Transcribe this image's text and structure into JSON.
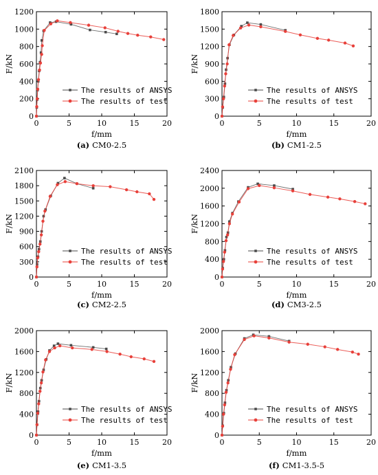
{
  "colors": {
    "ansys": "#4a4a4a",
    "test": "#e8403a",
    "axis": "#000000"
  },
  "legend": {
    "placement": "lower-right"
  },
  "chart_data": [
    {
      "type": "line",
      "tag": "(a)",
      "label": "CM0-2.5",
      "xlabel": "f/mm",
      "ylabel": "F/kN",
      "xlim": [
        0,
        20
      ],
      "ylim": [
        0,
        1200
      ],
      "xticks": [
        0,
        5,
        10,
        15,
        20
      ],
      "yticks": [
        0,
        200,
        400,
        600,
        800,
        1000,
        1200
      ],
      "series": [
        {
          "name": "The results of ANSYS",
          "marker": "square",
          "points": [
            [
              0,
              0
            ],
            [
              0.05,
              100
            ],
            [
              0.1,
              190
            ],
            [
              0.18,
              300
            ],
            [
              0.28,
              400
            ],
            [
              0.42,
              520
            ],
            [
              0.55,
              620
            ],
            [
              0.7,
              730
            ],
            [
              0.82,
              870
            ],
            [
              1.1,
              980
            ],
            [
              2.1,
              1075
            ],
            [
              3.0,
              1085
            ],
            [
              5.3,
              1055
            ],
            [
              8.2,
              990
            ],
            [
              10.6,
              965
            ],
            [
              12.3,
              945
            ]
          ]
        },
        {
          "name": "The results of test",
          "marker": "circle",
          "points": [
            [
              0,
              0
            ],
            [
              0.05,
              110
            ],
            [
              0.12,
              200
            ],
            [
              0.2,
              310
            ],
            [
              0.32,
              420
            ],
            [
              0.48,
              530
            ],
            [
              0.62,
              610
            ],
            [
              0.8,
              710
            ],
            [
              0.9,
              810
            ],
            [
              1.2,
              985
            ],
            [
              2.2,
              1060
            ],
            [
              3.2,
              1095
            ],
            [
              5.2,
              1075
            ],
            [
              8.0,
              1045
            ],
            [
              10.5,
              1015
            ],
            [
              12.5,
              975
            ],
            [
              14.0,
              950
            ],
            [
              15.5,
              930
            ],
            [
              17.5,
              910
            ],
            [
              19.5,
              880
            ]
          ]
        }
      ]
    },
    {
      "type": "line",
      "tag": "(b)",
      "label": "CM1-2.5",
      "xlabel": "f/mm",
      "ylabel": "F/kN",
      "xlim": [
        0,
        20
      ],
      "ylim": [
        0,
        1800
      ],
      "xticks": [
        0,
        5,
        10,
        15,
        20
      ],
      "yticks": [
        0,
        300,
        600,
        900,
        1200,
        1500,
        1800
      ],
      "series": [
        {
          "name": "The results of ANSYS",
          "marker": "square",
          "points": [
            [
              0,
              0
            ],
            [
              0.1,
              150
            ],
            [
              0.25,
              330
            ],
            [
              0.4,
              560
            ],
            [
              0.55,
              800
            ],
            [
              0.75,
              1000
            ],
            [
              1.0,
              1230
            ],
            [
              1.6,
              1400
            ],
            [
              2.6,
              1550
            ],
            [
              3.4,
              1610
            ],
            [
              5.2,
              1580
            ],
            [
              8.5,
              1480
            ]
          ]
        },
        {
          "name": "The results of test",
          "marker": "circle",
          "points": [
            [
              0,
              0
            ],
            [
              0.08,
              160
            ],
            [
              0.2,
              300
            ],
            [
              0.35,
              520
            ],
            [
              0.5,
              730
            ],
            [
              0.7,
              900
            ],
            [
              0.95,
              1230
            ],
            [
              1.5,
              1390
            ],
            [
              2.5,
              1520
            ],
            [
              3.6,
              1570
            ],
            [
              5.2,
              1540
            ],
            [
              8.5,
              1460
            ],
            [
              10.5,
              1400
            ],
            [
              12.8,
              1340
            ],
            [
              14.3,
              1310
            ],
            [
              16.5,
              1260
            ],
            [
              17.6,
              1210
            ]
          ]
        }
      ]
    },
    {
      "type": "line",
      "tag": "(c)",
      "label": "CM2-2.5",
      "xlabel": "f/mm",
      "ylabel": "F/kN",
      "xlim": [
        0,
        20
      ],
      "ylim": [
        0,
        2100
      ],
      "xticks": [
        0,
        5,
        10,
        15,
        20
      ],
      "yticks": [
        0,
        300,
        600,
        900,
        1200,
        1500,
        1800,
        2100
      ],
      "series": [
        {
          "name": "The results of ANSYS",
          "marker": "square",
          "points": [
            [
              0,
              0
            ],
            [
              0.1,
              250
            ],
            [
              0.25,
              400
            ],
            [
              0.4,
              550
            ],
            [
              0.6,
              700
            ],
            [
              0.8,
              900
            ],
            [
              1.1,
              1200
            ],
            [
              1.4,
              1330
            ],
            [
              2.2,
              1600
            ],
            [
              3.3,
              1850
            ],
            [
              4.3,
              1950
            ],
            [
              6.2,
              1840
            ],
            [
              8.7,
              1750
            ]
          ]
        },
        {
          "name": "The results of test",
          "marker": "circle",
          "points": [
            [
              0,
              0
            ],
            [
              0.08,
              200
            ],
            [
              0.2,
              380
            ],
            [
              0.35,
              500
            ],
            [
              0.55,
              650
            ],
            [
              0.75,
              830
            ],
            [
              1.0,
              1100
            ],
            [
              1.3,
              1300
            ],
            [
              2.1,
              1590
            ],
            [
              3.2,
              1820
            ],
            [
              4.4,
              1880
            ],
            [
              6.2,
              1840
            ],
            [
              8.7,
              1800
            ],
            [
              11.3,
              1780
            ],
            [
              13.8,
              1720
            ],
            [
              15.4,
              1680
            ],
            [
              17.3,
              1640
            ],
            [
              18.0,
              1530
            ]
          ]
        }
      ]
    },
    {
      "type": "line",
      "tag": "(d)",
      "label": "CM3-2.5",
      "xlabel": "f/mm",
      "ylabel": "F/kN",
      "xlim": [
        0,
        20
      ],
      "ylim": [
        0,
        2400
      ],
      "xticks": [
        0,
        5,
        10,
        15,
        20
      ],
      "yticks": [
        0,
        400,
        800,
        1200,
        1600,
        2000,
        2400
      ],
      "series": [
        {
          "name": "The results of ANSYS",
          "marker": "square",
          "points": [
            [
              0,
              0
            ],
            [
              0.1,
              200
            ],
            [
              0.25,
              400
            ],
            [
              0.4,
              600
            ],
            [
              0.6,
              900
            ],
            [
              0.8,
              1000
            ],
            [
              1.0,
              1250
            ],
            [
              1.4,
              1440
            ],
            [
              2.2,
              1700
            ],
            [
              3.5,
              2020
            ],
            [
              4.8,
              2100
            ],
            [
              7.0,
              2060
            ],
            [
              9.5,
              1980
            ]
          ]
        },
        {
          "name": "The results of test",
          "marker": "circle",
          "points": [
            [
              0,
              0
            ],
            [
              0.08,
              180
            ],
            [
              0.2,
              350
            ],
            [
              0.35,
              560
            ],
            [
              0.55,
              820
            ],
            [
              0.75,
              950
            ],
            [
              1.0,
              1200
            ],
            [
              1.4,
              1420
            ],
            [
              2.3,
              1690
            ],
            [
              3.5,
              1990
            ],
            [
              5.0,
              2060
            ],
            [
              7.0,
              2010
            ],
            [
              9.5,
              1940
            ],
            [
              11.8,
              1860
            ],
            [
              14.2,
              1800
            ],
            [
              15.8,
              1760
            ],
            [
              17.8,
              1700
            ],
            [
              19.2,
              1650
            ]
          ]
        }
      ]
    },
    {
      "type": "line",
      "tag": "(e)",
      "label": "CM1-3.5",
      "xlabel": "f/mm",
      "ylabel": "F/kN",
      "xlim": [
        0,
        20
      ],
      "ylim": [
        0,
        2000
      ],
      "xticks": [
        0,
        5,
        10,
        15,
        20
      ],
      "yticks": [
        0,
        400,
        800,
        1200,
        1600,
        2000
      ],
      "series": [
        {
          "name": "The results of ANSYS",
          "marker": "square",
          "points": [
            [
              0,
              0
            ],
            [
              0.1,
              200
            ],
            [
              0.25,
              450
            ],
            [
              0.4,
              650
            ],
            [
              0.6,
              900
            ],
            [
              0.8,
              1050
            ],
            [
              1.1,
              1250
            ],
            [
              1.5,
              1450
            ],
            [
              2.0,
              1620
            ],
            [
              2.7,
              1710
            ],
            [
              3.3,
              1750
            ],
            [
              5.3,
              1720
            ],
            [
              8.7,
              1680
            ],
            [
              10.7,
              1650
            ]
          ]
        },
        {
          "name": "The results of test",
          "marker": "circle",
          "points": [
            [
              0,
              0
            ],
            [
              0.08,
              200
            ],
            [
              0.2,
              420
            ],
            [
              0.35,
              600
            ],
            [
              0.55,
              840
            ],
            [
              0.75,
              1000
            ],
            [
              1.0,
              1210
            ],
            [
              1.4,
              1440
            ],
            [
              2.0,
              1600
            ],
            [
              2.8,
              1670
            ],
            [
              3.6,
              1710
            ],
            [
              5.5,
              1670
            ],
            [
              8.5,
              1640
            ],
            [
              10.8,
              1600
            ],
            [
              12.8,
              1550
            ],
            [
              14.5,
              1500
            ],
            [
              16.5,
              1460
            ],
            [
              18.0,
              1410
            ]
          ]
        }
      ]
    },
    {
      "type": "line",
      "tag": "(f)",
      "label": "CM1-3.5-5",
      "xlabel": "f/mm",
      "ylabel": "F/kN",
      "xlim": [
        0,
        20
      ],
      "ylim": [
        0,
        2000
      ],
      "xticks": [
        0,
        5,
        10,
        15,
        20
      ],
      "yticks": [
        0,
        400,
        800,
        1200,
        1600,
        2000
      ],
      "series": [
        {
          "name": "The results of ANSYS",
          "marker": "square",
          "points": [
            [
              0,
              0
            ],
            [
              0.1,
              180
            ],
            [
              0.25,
              420
            ],
            [
              0.4,
              620
            ],
            [
              0.6,
              860
            ],
            [
              0.85,
              1050
            ],
            [
              1.2,
              1300
            ],
            [
              1.8,
              1560
            ],
            [
              3.0,
              1850
            ],
            [
              4.2,
              1920
            ],
            [
              6.3,
              1890
            ],
            [
              9.0,
              1800
            ]
          ]
        },
        {
          "name": "The results of test",
          "marker": "circle",
          "points": [
            [
              0,
              0
            ],
            [
              0.08,
              170
            ],
            [
              0.2,
              400
            ],
            [
              0.35,
              580
            ],
            [
              0.55,
              820
            ],
            [
              0.8,
              1000
            ],
            [
              1.15,
              1260
            ],
            [
              1.7,
              1540
            ],
            [
              3.0,
              1830
            ],
            [
              4.3,
              1900
            ],
            [
              6.3,
              1860
            ],
            [
              9.0,
              1780
            ],
            [
              11.5,
              1740
            ],
            [
              13.8,
              1690
            ],
            [
              15.5,
              1640
            ],
            [
              17.5,
              1590
            ],
            [
              18.3,
              1550
            ]
          ]
        }
      ]
    }
  ]
}
